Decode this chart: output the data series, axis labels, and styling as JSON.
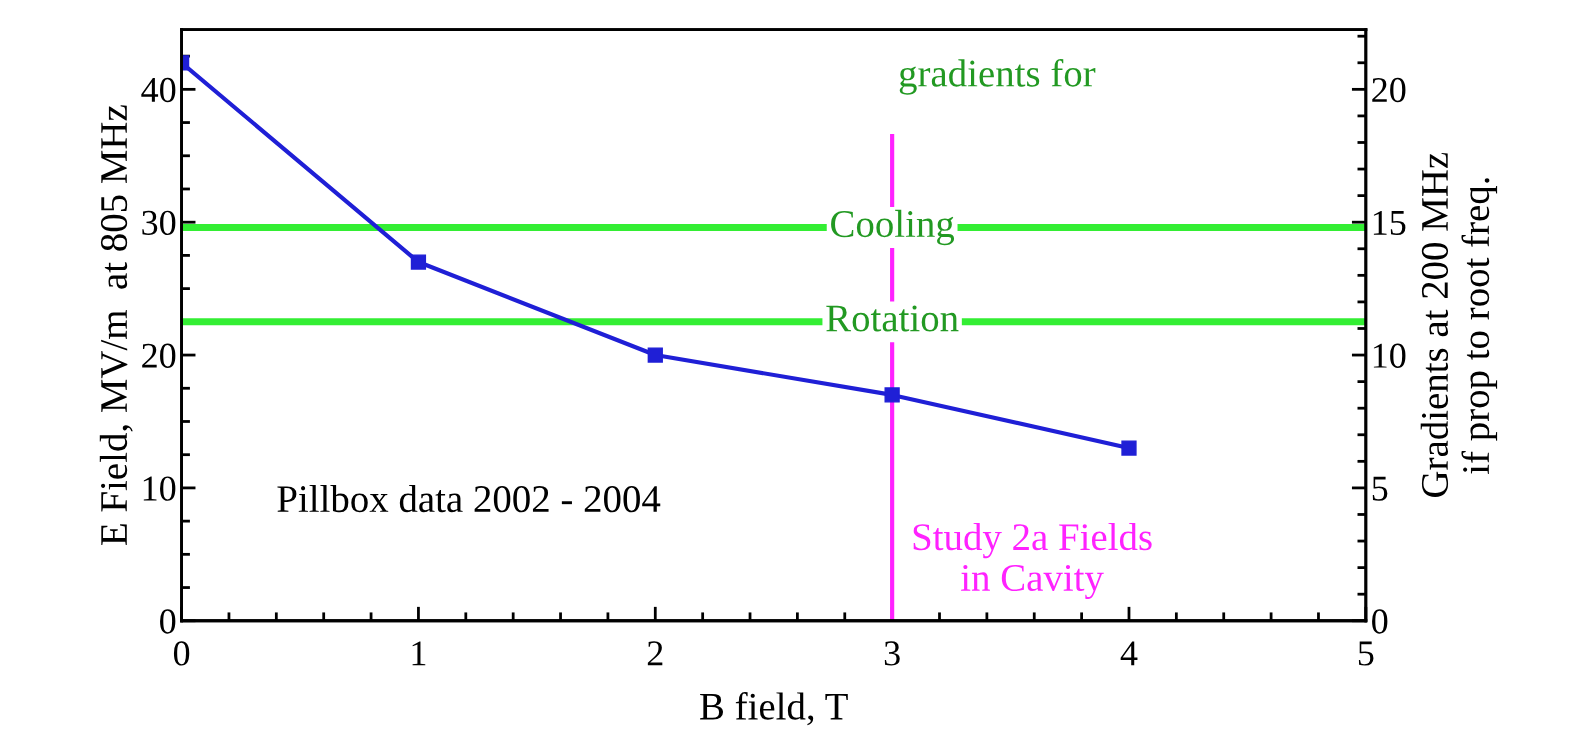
{
  "chart_data": {
    "type": "line",
    "xlabel": "B field, T",
    "ylabel": "E Field, MV/m  at 805 MHz",
    "y2label": "Gradients at 200 MHz\nif prop to root freq.",
    "x": [
      0,
      1,
      2,
      3,
      4
    ],
    "series": [
      {
        "color": "#1f1fd6",
        "values": [
          42,
          27,
          20,
          17,
          13
        ]
      }
    ],
    "marker": "square",
    "line_style": "solid",
    "grid": false,
    "legend": false,
    "xlim": [
      0,
      5
    ],
    "xticks": [
      0,
      1,
      2,
      3,
      4,
      5
    ],
    "ylim": [
      0,
      44.5
    ],
    "yticks": [
      0,
      10,
      20,
      30,
      40
    ],
    "y2lim": [
      0,
      22.25
    ],
    "y2ticks": [
      0,
      5,
      10,
      15,
      20
    ],
    "ref_lines": [
      {
        "axis": "y",
        "value": 29.6,
        "label": "Cooling",
        "color": "#33ee33"
      },
      {
        "axis": "y",
        "value": 22.5,
        "label": "Rotation",
        "color": "#33ee33"
      },
      {
        "axis": "x",
        "value": 3,
        "label": "Study 2a Fields\nin Cavity",
        "color": "#ff22ff"
      }
    ],
    "annotations": [
      "gradients for",
      "Pillbox data 2002 - 2004"
    ]
  }
}
